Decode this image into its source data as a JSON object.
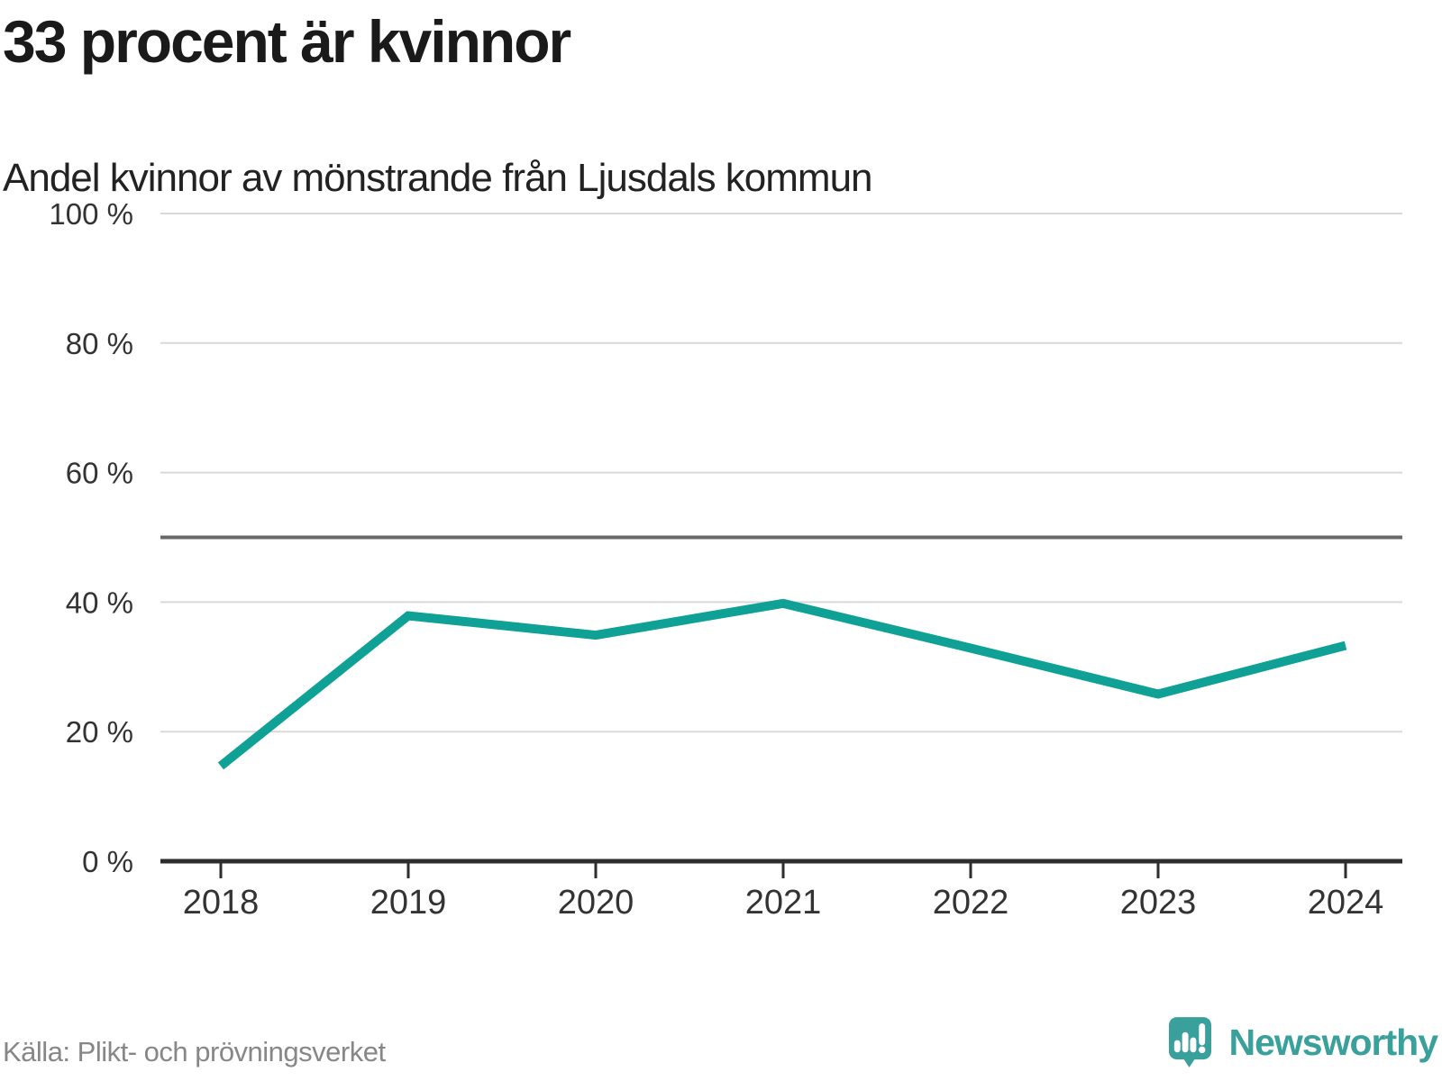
{
  "header": {
    "title": "33 procent är kvinnor",
    "subtitle": "Andel kvinnor av mönstrande från Ljusdals kommun"
  },
  "footer": {
    "source": "Källa: Plikt- och prövningsverket",
    "brand": "Newsworthy"
  },
  "chart_data": {
    "type": "line",
    "title": "33 procent är kvinnor",
    "subtitle": "Andel kvinnor av mönstrande från Ljusdals kommun",
    "x": [
      2018,
      2019,
      2020,
      2021,
      2022,
      2023,
      2024
    ],
    "series": [
      {
        "name": "Andel kvinnor av mönstrande",
        "values": [
          14.7,
          37.9,
          34.9,
          39.8,
          32.9,
          25.8,
          33.3
        ]
      }
    ],
    "unit": "%",
    "xlabel": "",
    "ylabel": "",
    "ylim": [
      0,
      100
    ],
    "yticks": [
      0,
      20,
      40,
      60,
      80,
      100
    ],
    "ytick_suffix": " %",
    "reference_line": 50,
    "grid": true,
    "legend": "none",
    "colors": {
      "line": "#0fa096",
      "grid": "#d9d9d9",
      "reference": "#686868",
      "axis": "#2d2d2d",
      "labels": "#333333"
    }
  }
}
